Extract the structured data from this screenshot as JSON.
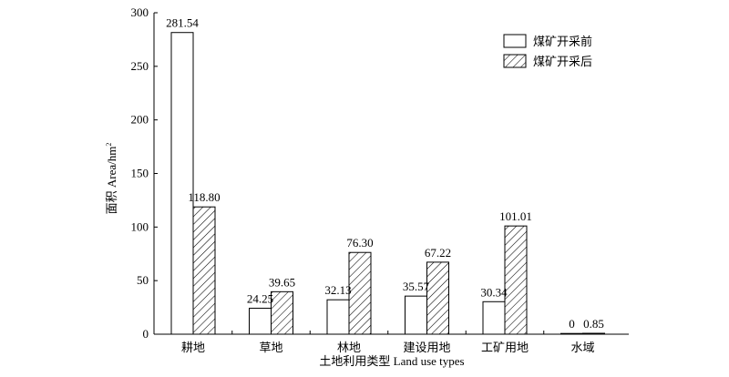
{
  "chart_data": {
    "type": "bar",
    "categories": [
      "耕地",
      "草地",
      "林地",
      "建设用地",
      "工矿用地",
      "水域"
    ],
    "series": [
      {
        "name": "煤矿开采前",
        "values": [
          281.54,
          24.25,
          32.13,
          35.57,
          30.34,
          0
        ],
        "labels": [
          "281.54",
          "24.25",
          "32.13",
          "35.57",
          "30.34",
          "0"
        ],
        "fill": "white"
      },
      {
        "name": "煤矿开采后",
        "values": [
          118.8,
          39.65,
          76.3,
          67.22,
          101.01,
          0.85
        ],
        "labels": [
          "118.80",
          "39.65",
          "76.30",
          "67.22",
          "101.01",
          "0.85"
        ],
        "fill": "hatched"
      }
    ],
    "xlabel": "土地利用类型 Land use types",
    "ylabel": "面积 Area/hm",
    "ylabel_superscript": "2",
    "ylim": [
      0,
      300
    ],
    "yticks": [
      0,
      50,
      100,
      150,
      200,
      250,
      300
    ],
    "grid": false,
    "legend_position": "top-right"
  }
}
